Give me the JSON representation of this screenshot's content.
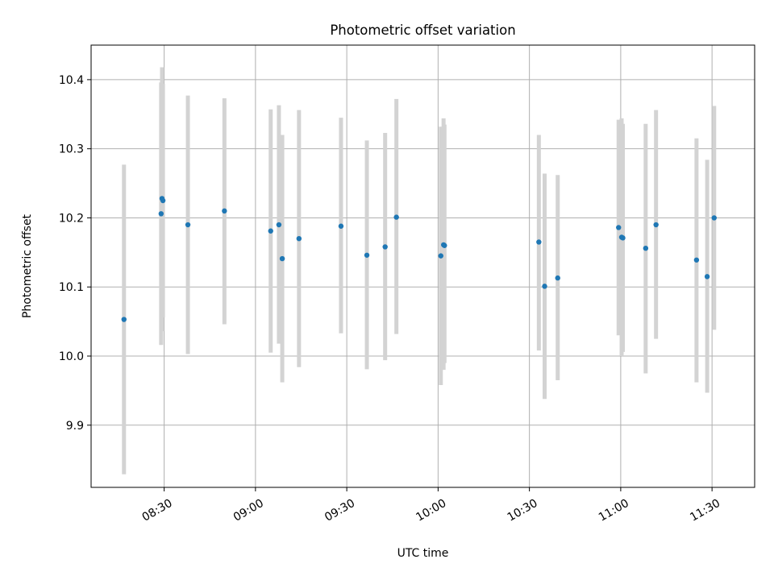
{
  "chart_data": {
    "type": "scatter",
    "title": "Photometric offset variation",
    "xlabel": "UTC time",
    "ylabel": "Photometric offset",
    "x_unit": "minutes since 00:00 UTC",
    "xlim": [
      486,
      704
    ],
    "ylim": [
      9.81,
      10.45
    ],
    "x_ticks": [
      510,
      540,
      570,
      600,
      630,
      660,
      690
    ],
    "x_tick_labels": [
      "08:30",
      "09:00",
      "09:30",
      "10:00",
      "10:30",
      "11:00",
      "11:30"
    ],
    "y_ticks": [
      9.9,
      10.0,
      10.1,
      10.2,
      10.3,
      10.4
    ],
    "y_tick_labels": [
      "9.9",
      "10.0",
      "10.1",
      "10.2",
      "10.3",
      "10.4"
    ],
    "grid": true,
    "colors": {
      "marker": "#1f77b4",
      "errorbar": "#d3d3d3",
      "grid": "#b0b0b0",
      "axes": "#000000"
    },
    "points": [
      {
        "x": 496.8,
        "y": 10.053,
        "y_low": 9.829,
        "y_high": 10.277
      },
      {
        "x": 509.0,
        "y": 10.206,
        "y_low": 10.016,
        "y_high": 10.396
      },
      {
        "x": 509.3,
        "y": 10.228,
        "y_low": 10.036,
        "y_high": 10.418
      },
      {
        "x": 509.6,
        "y": 10.225,
        "y_low": 10.056,
        "y_high": 10.394
      },
      {
        "x": 517.8,
        "y": 10.19,
        "y_low": 10.003,
        "y_high": 10.377
      },
      {
        "x": 529.8,
        "y": 10.21,
        "y_low": 10.046,
        "y_high": 10.373
      },
      {
        "x": 545.0,
        "y": 10.181,
        "y_low": 10.005,
        "y_high": 10.357
      },
      {
        "x": 547.7,
        "y": 10.19,
        "y_low": 10.018,
        "y_high": 10.363
      },
      {
        "x": 548.8,
        "y": 10.141,
        "y_low": 9.962,
        "y_high": 10.32
      },
      {
        "x": 554.3,
        "y": 10.17,
        "y_low": 9.984,
        "y_high": 10.356
      },
      {
        "x": 568.1,
        "y": 10.188,
        "y_low": 10.033,
        "y_high": 10.345
      },
      {
        "x": 576.6,
        "y": 10.146,
        "y_low": 9.981,
        "y_high": 10.312
      },
      {
        "x": 582.6,
        "y": 10.158,
        "y_low": 9.994,
        "y_high": 10.323
      },
      {
        "x": 586.3,
        "y": 10.201,
        "y_low": 10.032,
        "y_high": 10.372
      },
      {
        "x": 600.9,
        "y": 10.145,
        "y_low": 9.958,
        "y_high": 10.332
      },
      {
        "x": 601.8,
        "y": 10.161,
        "y_low": 9.98,
        "y_high": 10.344
      },
      {
        "x": 602.1,
        "y": 10.16,
        "y_low": 9.99,
        "y_high": 10.335
      },
      {
        "x": 633.1,
        "y": 10.165,
        "y_low": 10.008,
        "y_high": 10.32
      },
      {
        "x": 635.0,
        "y": 10.101,
        "y_low": 9.938,
        "y_high": 10.264
      },
      {
        "x": 639.3,
        "y": 10.113,
        "y_low": 9.965,
        "y_high": 10.262
      },
      {
        "x": 659.3,
        "y": 10.186,
        "y_low": 10.03,
        "y_high": 10.342
      },
      {
        "x": 660.3,
        "y": 10.172,
        "y_low": 10.0,
        "y_high": 10.344
      },
      {
        "x": 660.7,
        "y": 10.171,
        "y_low": 10.006,
        "y_high": 10.336
      },
      {
        "x": 668.2,
        "y": 10.156,
        "y_low": 9.975,
        "y_high": 10.336
      },
      {
        "x": 671.6,
        "y": 10.19,
        "y_low": 10.025,
        "y_high": 10.356
      },
      {
        "x": 684.9,
        "y": 10.139,
        "y_low": 9.962,
        "y_high": 10.315
      },
      {
        "x": 688.4,
        "y": 10.115,
        "y_low": 9.947,
        "y_high": 10.284
      },
      {
        "x": 690.7,
        "y": 10.2,
        "y_low": 10.038,
        "y_high": 10.362
      }
    ]
  }
}
